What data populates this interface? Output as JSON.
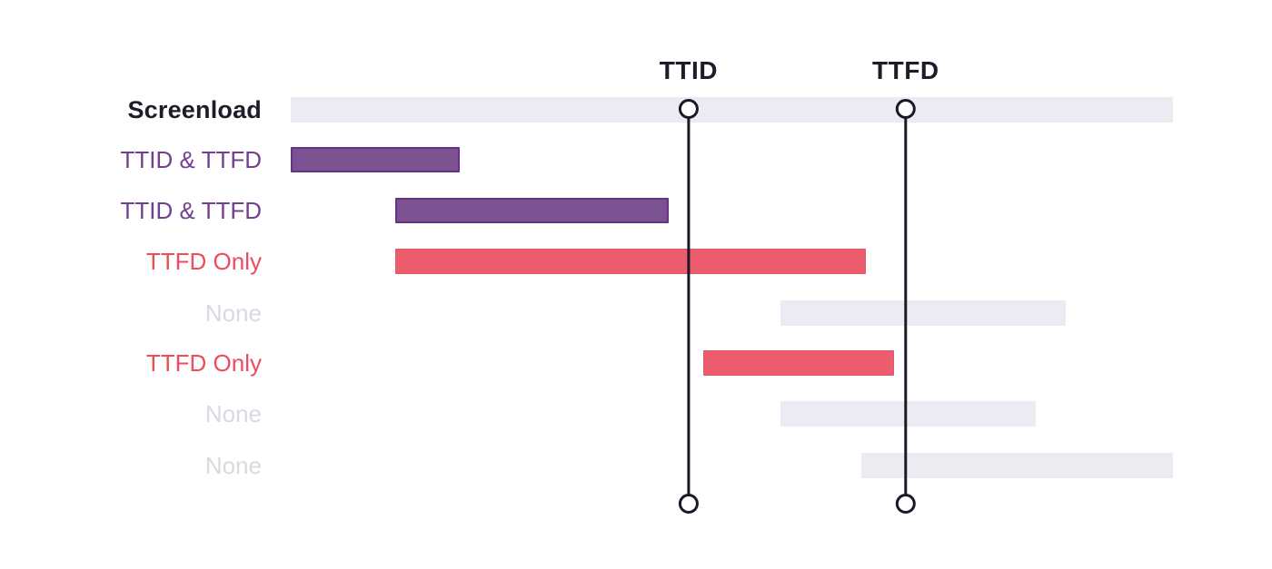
{
  "diagram": {
    "title_hidden": "",
    "colors": {
      "background": "#ffffff",
      "bar_gray": "#edebf2",
      "bar_purple_fill": "#7a5292",
      "bar_purple_border": "#6a3085",
      "bar_red_fill": "#ec5e6e",
      "label_dark": "#211a2b",
      "label_purple": "#71418f",
      "label_red": "#ee4b5e",
      "label_muted": "#dbd8e1",
      "marker_line": "#1d1726"
    },
    "markers": [
      {
        "id": "ttid",
        "label": "TTID",
        "position": 0.451
      },
      {
        "id": "ttfd",
        "label": "TTFD",
        "position": 0.697
      }
    ],
    "rows": [
      {
        "label": "Screenload",
        "style": "screenload",
        "bar": {
          "start": 0,
          "end": 1,
          "color": "gray"
        }
      },
      {
        "label": "TTID & TTFD",
        "style": "purple",
        "bar": {
          "start": 0,
          "end": 0.192,
          "color": "purple"
        }
      },
      {
        "label": "TTID & TTFD",
        "style": "purple",
        "bar": {
          "start": 0.118,
          "end": 0.428,
          "color": "purple"
        }
      },
      {
        "label": "TTFD Only",
        "style": "red",
        "bar": {
          "start": 0.118,
          "end": 0.652,
          "color": "red"
        }
      },
      {
        "label": "None",
        "style": "muted",
        "bar": {
          "start": 0.555,
          "end": 0.878,
          "color": "gray"
        }
      },
      {
        "label": "TTFD Only",
        "style": "red",
        "bar": {
          "start": 0.468,
          "end": 0.684,
          "color": "red"
        }
      },
      {
        "label": "None",
        "style": "muted",
        "bar": {
          "start": 0.555,
          "end": 0.845,
          "color": "gray"
        }
      },
      {
        "label": "None",
        "style": "muted",
        "bar": {
          "start": 0.647,
          "end": 1,
          "color": "gray"
        }
      }
    ]
  }
}
